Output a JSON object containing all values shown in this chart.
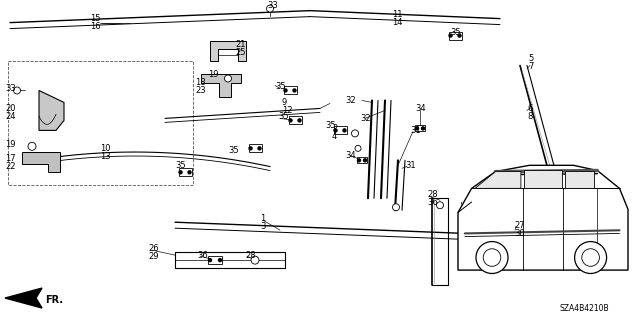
{
  "bg_color": "#ffffff",
  "line_color": "#000000",
  "label_fontsize": 6.0
}
